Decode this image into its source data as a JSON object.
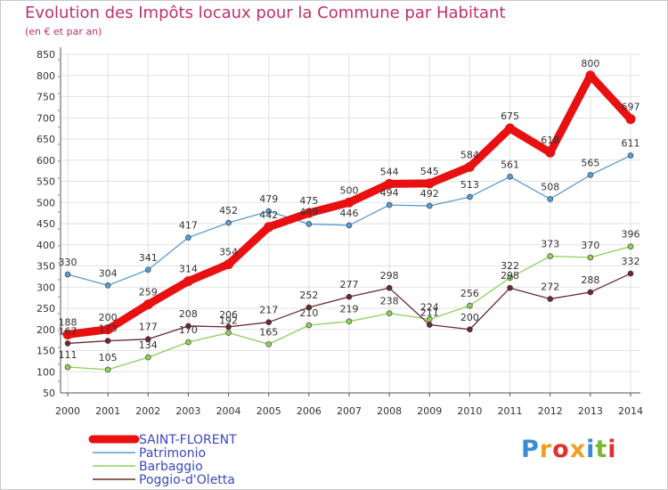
{
  "header": {
    "title": "Evolution des Impôts locaux pour la Commune par Habitant",
    "subtitle": "(en € et par an)"
  },
  "logo": {
    "text": "Proxiti",
    "colors": [
      "#3a8ad4",
      "#f0a020",
      "#e03030",
      "#f0a020",
      "#3a8ad4",
      "#7ab830",
      "#e03030"
    ]
  },
  "chart_data": {
    "type": "line",
    "x": [
      2000,
      2001,
      2002,
      2003,
      2004,
      2005,
      2006,
      2007,
      2008,
      2009,
      2010,
      2011,
      2012,
      2013,
      2014
    ],
    "ylim": [
      50,
      850
    ],
    "yticks": [
      50,
      100,
      150,
      200,
      250,
      300,
      350,
      400,
      450,
      500,
      550,
      600,
      650,
      700,
      750,
      800,
      850
    ],
    "grid": true,
    "legend": "bottom-left",
    "series": [
      {
        "name": "Patrimonio",
        "color": "#5a9bd0",
        "values": [
          330,
          304,
          341,
          417,
          452,
          479,
          449,
          446,
          494,
          492,
          513,
          561,
          508,
          565,
          611
        ]
      },
      {
        "name": "Barbaggio",
        "color": "#8ed05a",
        "values": [
          111,
          105,
          134,
          170,
          192,
          165,
          210,
          219,
          238,
          224,
          256,
          322,
          373,
          370,
          396
        ]
      },
      {
        "name": "Poggio-d'Oletta",
        "color": "#6a2a30",
        "values": [
          167,
          173,
          177,
          208,
          206,
          217,
          252,
          277,
          298,
          211,
          200,
          298,
          272,
          288,
          332
        ]
      },
      {
        "name": "SAINT-FLORENT",
        "color": "#e81010",
        "values": [
          188,
          200,
          259,
          314,
          354,
          442,
          475,
          500,
          544,
          545,
          584,
          675,
          618,
          800,
          697
        ]
      }
    ]
  }
}
